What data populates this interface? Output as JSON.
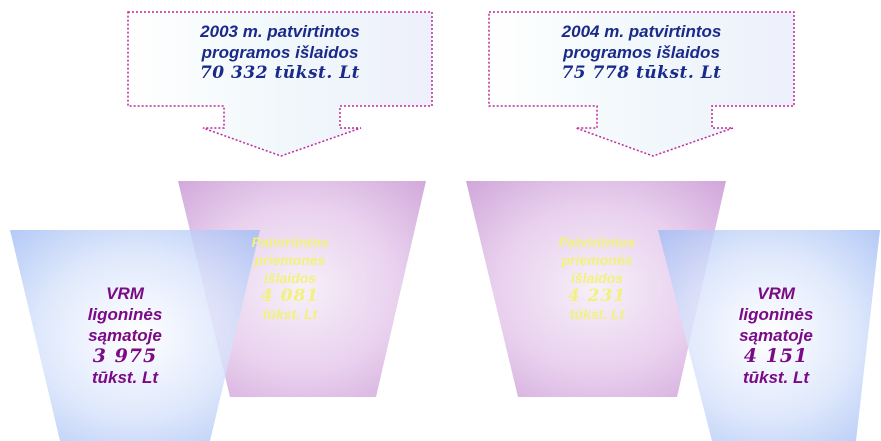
{
  "colors": {
    "callout_text": "#1a2a8a",
    "callout_border": "#c0289a",
    "pink_text": "#f2f27a",
    "blue_text": "#7a0a86",
    "pink_fill": "#d8b0de",
    "blue_fill": "#b8cdf6"
  },
  "left": {
    "callout": {
      "line1": "2003 m. patvirtintos",
      "line2": "programos išlaidos",
      "line3": "70 332 tūkst. Lt"
    },
    "pink": {
      "line1": "Patvirtintos",
      "line2": "priemonės",
      "line3": "išlaidos",
      "value": "4 081",
      "unit": "tūkst. Lt"
    },
    "blue": {
      "line1": "VRM",
      "line2": "ligoninės",
      "line3": "sąmatoje",
      "value": "3 975",
      "unit": "tūkst. Lt"
    }
  },
  "right": {
    "callout": {
      "line1": "2004 m. patvirtintos",
      "line2": "programos išlaidos",
      "line3": "75 778 tūkst. Lt"
    },
    "pink": {
      "line1": "Patvirtintos",
      "line2": "priemonės",
      "line3": "išlaidos",
      "value": "4 231",
      "unit": "tūkst. Lt"
    },
    "blue": {
      "line1": "VRM",
      "line2": "ligoninės",
      "line3": "sąmatoje",
      "value": "4 151",
      "unit": "tūkst. Lt"
    }
  }
}
